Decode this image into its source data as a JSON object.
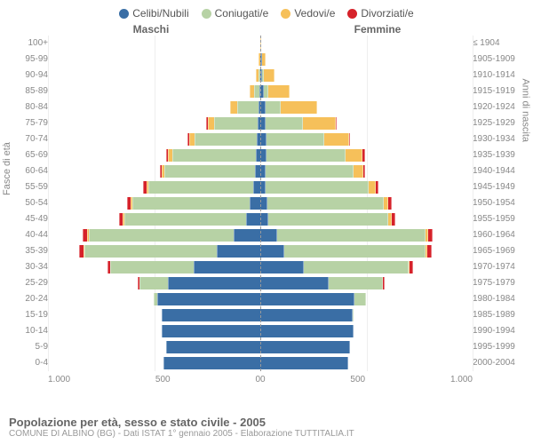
{
  "legend": [
    {
      "label": "Celibi/Nubili",
      "color": "#3a6ea5"
    },
    {
      "label": "Coniugati/e",
      "color": "#b7d2a5"
    },
    {
      "label": "Vedovi/e",
      "color": "#f6c05a"
    },
    {
      "label": "Divorziati/e",
      "color": "#d6222a"
    }
  ],
  "headers": {
    "male": "Maschi",
    "female": "Femmine"
  },
  "axis_left_title": "Fasce di età",
  "axis_right_title": "Anni di nascita",
  "x_ticks_left": [
    "1.000",
    "500",
    "0"
  ],
  "x_ticks_right": [
    "0",
    "500",
    "1.000"
  ],
  "max_value": 1000,
  "footer_title": "Popolazione per età, sesso e stato civile - 2005",
  "footer_sub": "COMUNE DI ALBINO (BG) - Dati ISTAT 1° gennaio 2005 - Elaborazione TUTTITALIA.IT",
  "rows": [
    {
      "age": "100+",
      "birth": "≤ 1904",
      "m": {
        "c": 0,
        "co": 0,
        "v": 0,
        "d": 0
      },
      "f": {
        "c": 0,
        "co": 0,
        "v": 2,
        "d": 0
      }
    },
    {
      "age": "95-99",
      "birth": "1905-1909",
      "m": {
        "c": 0,
        "co": 0,
        "v": 3,
        "d": 0
      },
      "f": {
        "c": 3,
        "co": 0,
        "v": 12,
        "d": 0
      }
    },
    {
      "age": "90-94",
      "birth": "1910-1914",
      "m": {
        "c": 0,
        "co": 5,
        "v": 8,
        "d": 0
      },
      "f": {
        "c": 6,
        "co": 4,
        "v": 45,
        "d": 0
      }
    },
    {
      "age": "85-89",
      "birth": "1915-1919",
      "m": {
        "c": 2,
        "co": 20,
        "v": 15,
        "d": 0
      },
      "f": {
        "c": 12,
        "co": 18,
        "v": 95,
        "d": 0
      }
    },
    {
      "age": "80-84",
      "birth": "1920-1924",
      "m": {
        "c": 4,
        "co": 95,
        "v": 30,
        "d": 0
      },
      "f": {
        "c": 20,
        "co": 70,
        "v": 165,
        "d": 0
      }
    },
    {
      "age": "75-79",
      "birth": "1925-1929",
      "m": {
        "c": 8,
        "co": 200,
        "v": 28,
        "d": 2
      },
      "f": {
        "c": 22,
        "co": 170,
        "v": 150,
        "d": 2
      }
    },
    {
      "age": "70-74",
      "birth": "1930-1934",
      "m": {
        "c": 12,
        "co": 290,
        "v": 22,
        "d": 4
      },
      "f": {
        "c": 25,
        "co": 270,
        "v": 110,
        "d": 3
      }
    },
    {
      "age": "65-69",
      "birth": "1935-1939",
      "m": {
        "c": 18,
        "co": 390,
        "v": 15,
        "d": 5
      },
      "f": {
        "c": 25,
        "co": 370,
        "v": 75,
        "d": 5
      }
    },
    {
      "age": "60-64",
      "birth": "1940-1944",
      "m": {
        "c": 22,
        "co": 420,
        "v": 8,
        "d": 6
      },
      "f": {
        "c": 20,
        "co": 410,
        "v": 42,
        "d": 6
      }
    },
    {
      "age": "55-59",
      "birth": "1945-1949",
      "m": {
        "c": 30,
        "co": 490,
        "v": 5,
        "d": 10
      },
      "f": {
        "c": 22,
        "co": 480,
        "v": 28,
        "d": 10
      }
    },
    {
      "age": "50-54",
      "birth": "1950-1954",
      "m": {
        "c": 45,
        "co": 550,
        "v": 4,
        "d": 12
      },
      "f": {
        "c": 28,
        "co": 545,
        "v": 18,
        "d": 12
      }
    },
    {
      "age": "45-49",
      "birth": "1955-1959",
      "m": {
        "c": 62,
        "co": 570,
        "v": 3,
        "d": 14
      },
      "f": {
        "c": 35,
        "co": 560,
        "v": 12,
        "d": 14
      }
    },
    {
      "age": "40-44",
      "birth": "1960-1964",
      "m": {
        "c": 120,
        "co": 680,
        "v": 2,
        "d": 18
      },
      "f": {
        "c": 75,
        "co": 695,
        "v": 8,
        "d": 18
      }
    },
    {
      "age": "35-39",
      "birth": "1965-1969",
      "m": {
        "c": 200,
        "co": 620,
        "v": 1,
        "d": 15
      },
      "f": {
        "c": 110,
        "co": 660,
        "v": 5,
        "d": 16
      }
    },
    {
      "age": "30-34",
      "birth": "1970-1974",
      "m": {
        "c": 310,
        "co": 390,
        "v": 0,
        "d": 8
      },
      "f": {
        "c": 200,
        "co": 490,
        "v": 2,
        "d": 10
      }
    },
    {
      "age": "25-29",
      "birth": "1975-1979",
      "m": {
        "c": 430,
        "co": 130,
        "v": 0,
        "d": 3
      },
      "f": {
        "c": 320,
        "co": 250,
        "v": 0,
        "d": 4
      }
    },
    {
      "age": "20-24",
      "birth": "1980-1984",
      "m": {
        "c": 480,
        "co": 15,
        "v": 0,
        "d": 0
      },
      "f": {
        "c": 440,
        "co": 50,
        "v": 0,
        "d": 0
      }
    },
    {
      "age": "15-19",
      "birth": "1985-1989",
      "m": {
        "c": 460,
        "co": 0,
        "v": 0,
        "d": 0
      },
      "f": {
        "c": 430,
        "co": 2,
        "v": 0,
        "d": 0
      }
    },
    {
      "age": "10-14",
      "birth": "1990-1994",
      "m": {
        "c": 460,
        "co": 0,
        "v": 0,
        "d": 0
      },
      "f": {
        "c": 435,
        "co": 0,
        "v": 0,
        "d": 0
      }
    },
    {
      "age": "5-9",
      "birth": "1995-1999",
      "m": {
        "c": 440,
        "co": 0,
        "v": 0,
        "d": 0
      },
      "f": {
        "c": 420,
        "co": 0,
        "v": 0,
        "d": 0
      }
    },
    {
      "age": "0-4",
      "birth": "2000-2004",
      "m": {
        "c": 450,
        "co": 0,
        "v": 0,
        "d": 0
      },
      "f": {
        "c": 410,
        "co": 0,
        "v": 0,
        "d": 0
      }
    }
  ]
}
